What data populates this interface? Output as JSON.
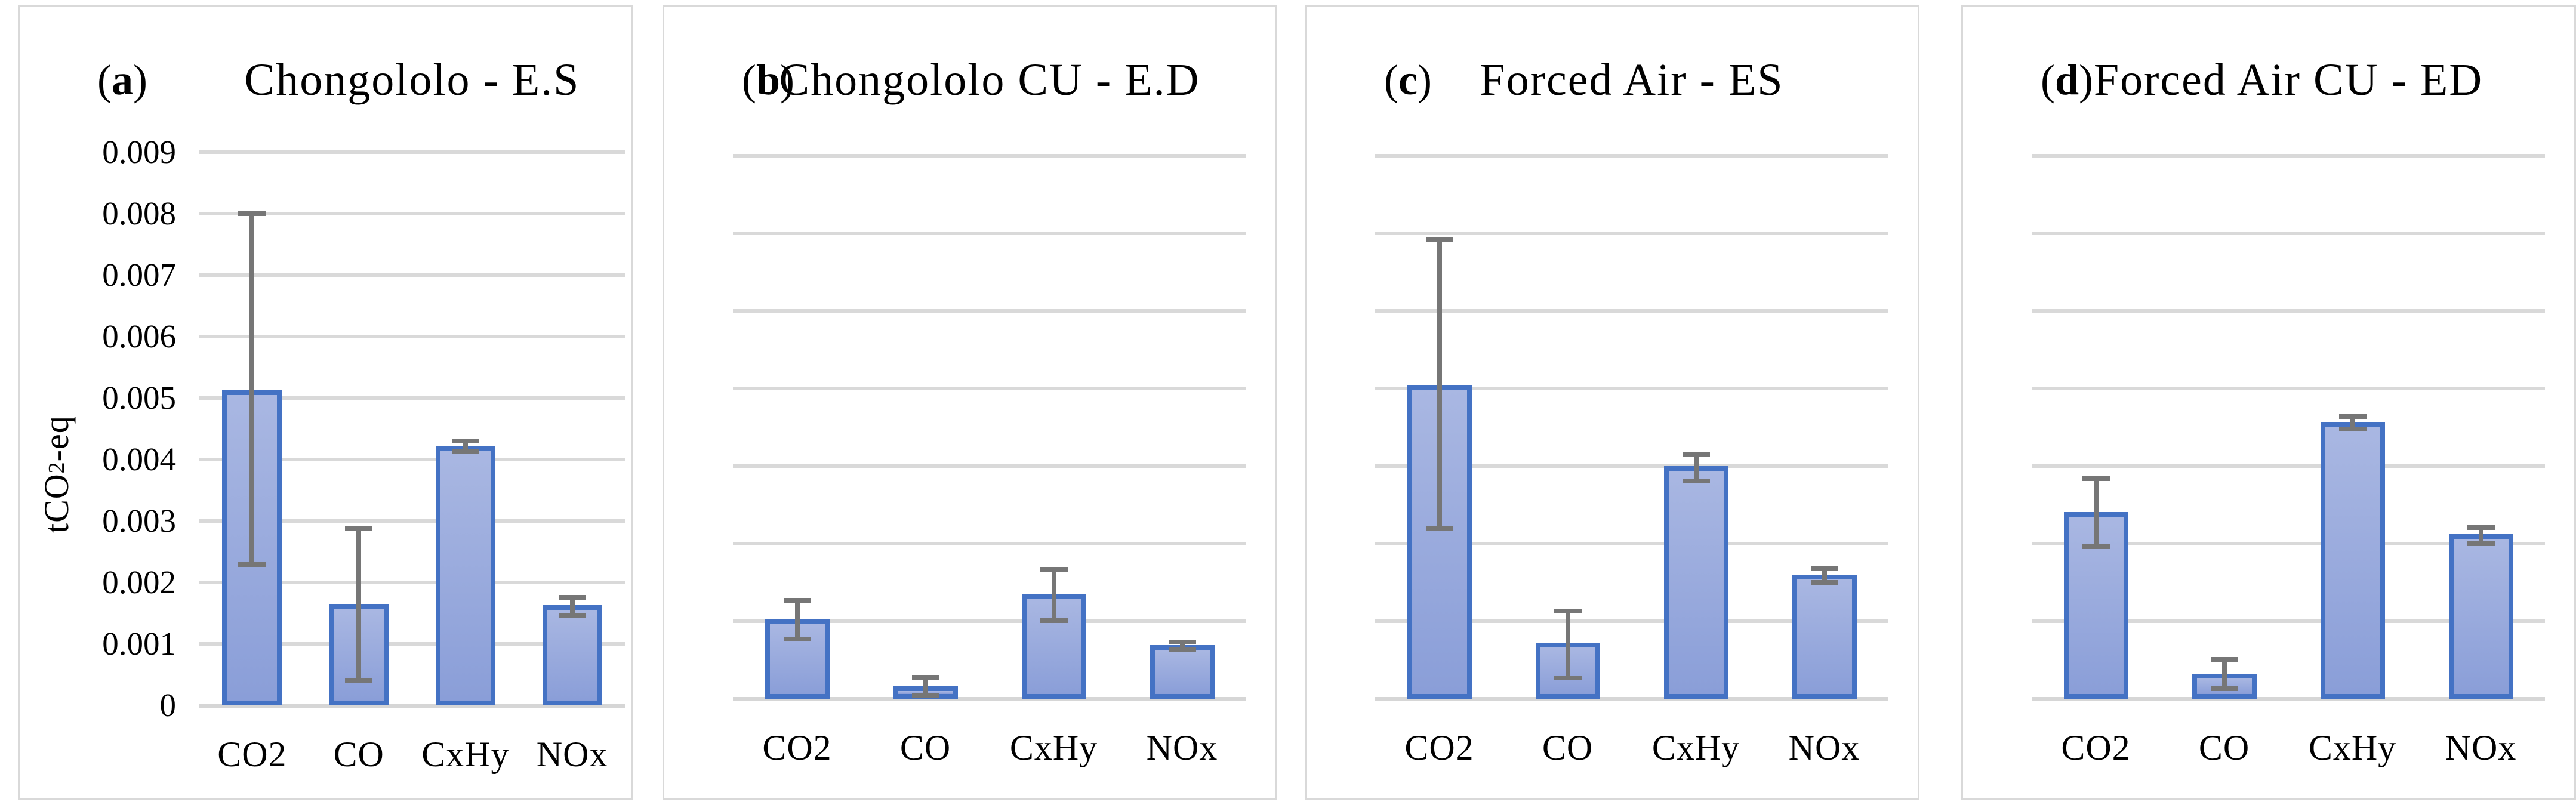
{
  "figure": {
    "ylabel": {
      "pre": "tCO",
      "sub": "2",
      "post": "-eq"
    },
    "letter_wrap": {
      "open": "(",
      "close": ")"
    },
    "colors": {
      "bar_fill_top": "#a9b7e2",
      "bar_fill_bottom": "#8a9ed8",
      "bar_border": "#4472c4",
      "error_bar": "#767676",
      "gridline": "#d9d9d9",
      "baseline": "#d6d6d6",
      "panel_border": "#d9d9d9",
      "text": "#000000"
    }
  },
  "chart_data": [
    {
      "type": "bar",
      "panel_letter": "a",
      "title": "Chongololo - E.S",
      "ylabel": "tCO2-eq",
      "categories": [
        "CO2",
        "CO",
        "CxHy",
        "NOx"
      ],
      "values": [
        0.00513,
        0.00165,
        0.00422,
        0.00163
      ],
      "error_low": [
        0.00229,
        0.0004,
        0.00414,
        0.00147
      ],
      "error_high": [
        0.008,
        0.00288,
        0.0043,
        0.00176
      ],
      "ylim": [
        0,
        0.009
      ],
      "y_tick_interval": 0.001,
      "y_tick_labels": [
        "0",
        "0.001",
        "0.002",
        "0.003",
        "0.004",
        "0.005",
        "0.006",
        "0.007",
        "0.008",
        "0.009"
      ],
      "grid": true,
      "show_y_axis": true,
      "legend": "none"
    },
    {
      "type": "bar",
      "panel_letter": "b",
      "title": "Chongololo CU - E.D",
      "categories": [
        "CO2",
        "CO",
        "CxHy",
        "NOx"
      ],
      "values": [
        0.00103,
        0.00016,
        0.00135,
        0.00069
      ],
      "error_low": [
        0.00077,
        4e-05,
        0.00101,
        0.00064
      ],
      "error_high": [
        0.00127,
        0.00028,
        0.00167,
        0.00073
      ],
      "ylim": [
        0,
        0.007
      ],
      "y_tick_interval": 0.001,
      "y_tick_labels": [],
      "grid": true,
      "show_y_axis": false,
      "legend": "none"
    },
    {
      "type": "bar",
      "panel_letter": "c",
      "title": "Forced Air - ES",
      "categories": [
        "CO2",
        "CO",
        "CxHy",
        "NOx"
      ],
      "values": [
        0.00404,
        0.00072,
        0.003,
        0.0016
      ],
      "error_low": [
        0.0022,
        0.00027,
        0.00281,
        0.0015
      ],
      "error_high": [
        0.00592,
        0.00113,
        0.00315,
        0.00168
      ],
      "ylim": [
        0,
        0.007
      ],
      "y_tick_interval": 0.001,
      "y_tick_labels": [],
      "grid": true,
      "show_y_axis": false,
      "legend": "none"
    },
    {
      "type": "bar",
      "panel_letter": "d",
      "title": "Forced Air CU - ED",
      "categories": [
        "CO2",
        "CO",
        "CxHy",
        "NOx"
      ],
      "values": [
        0.00241,
        0.00032,
        0.00357,
        0.00212
      ],
      "error_low": [
        0.00196,
        0.00013,
        0.00348,
        0.002
      ],
      "error_high": [
        0.00284,
        0.00051,
        0.00364,
        0.00221
      ],
      "ylim": [
        0,
        0.007
      ],
      "y_tick_interval": 0.001,
      "y_tick_labels": [],
      "grid": true,
      "show_y_axis": false,
      "legend": "none"
    }
  ]
}
